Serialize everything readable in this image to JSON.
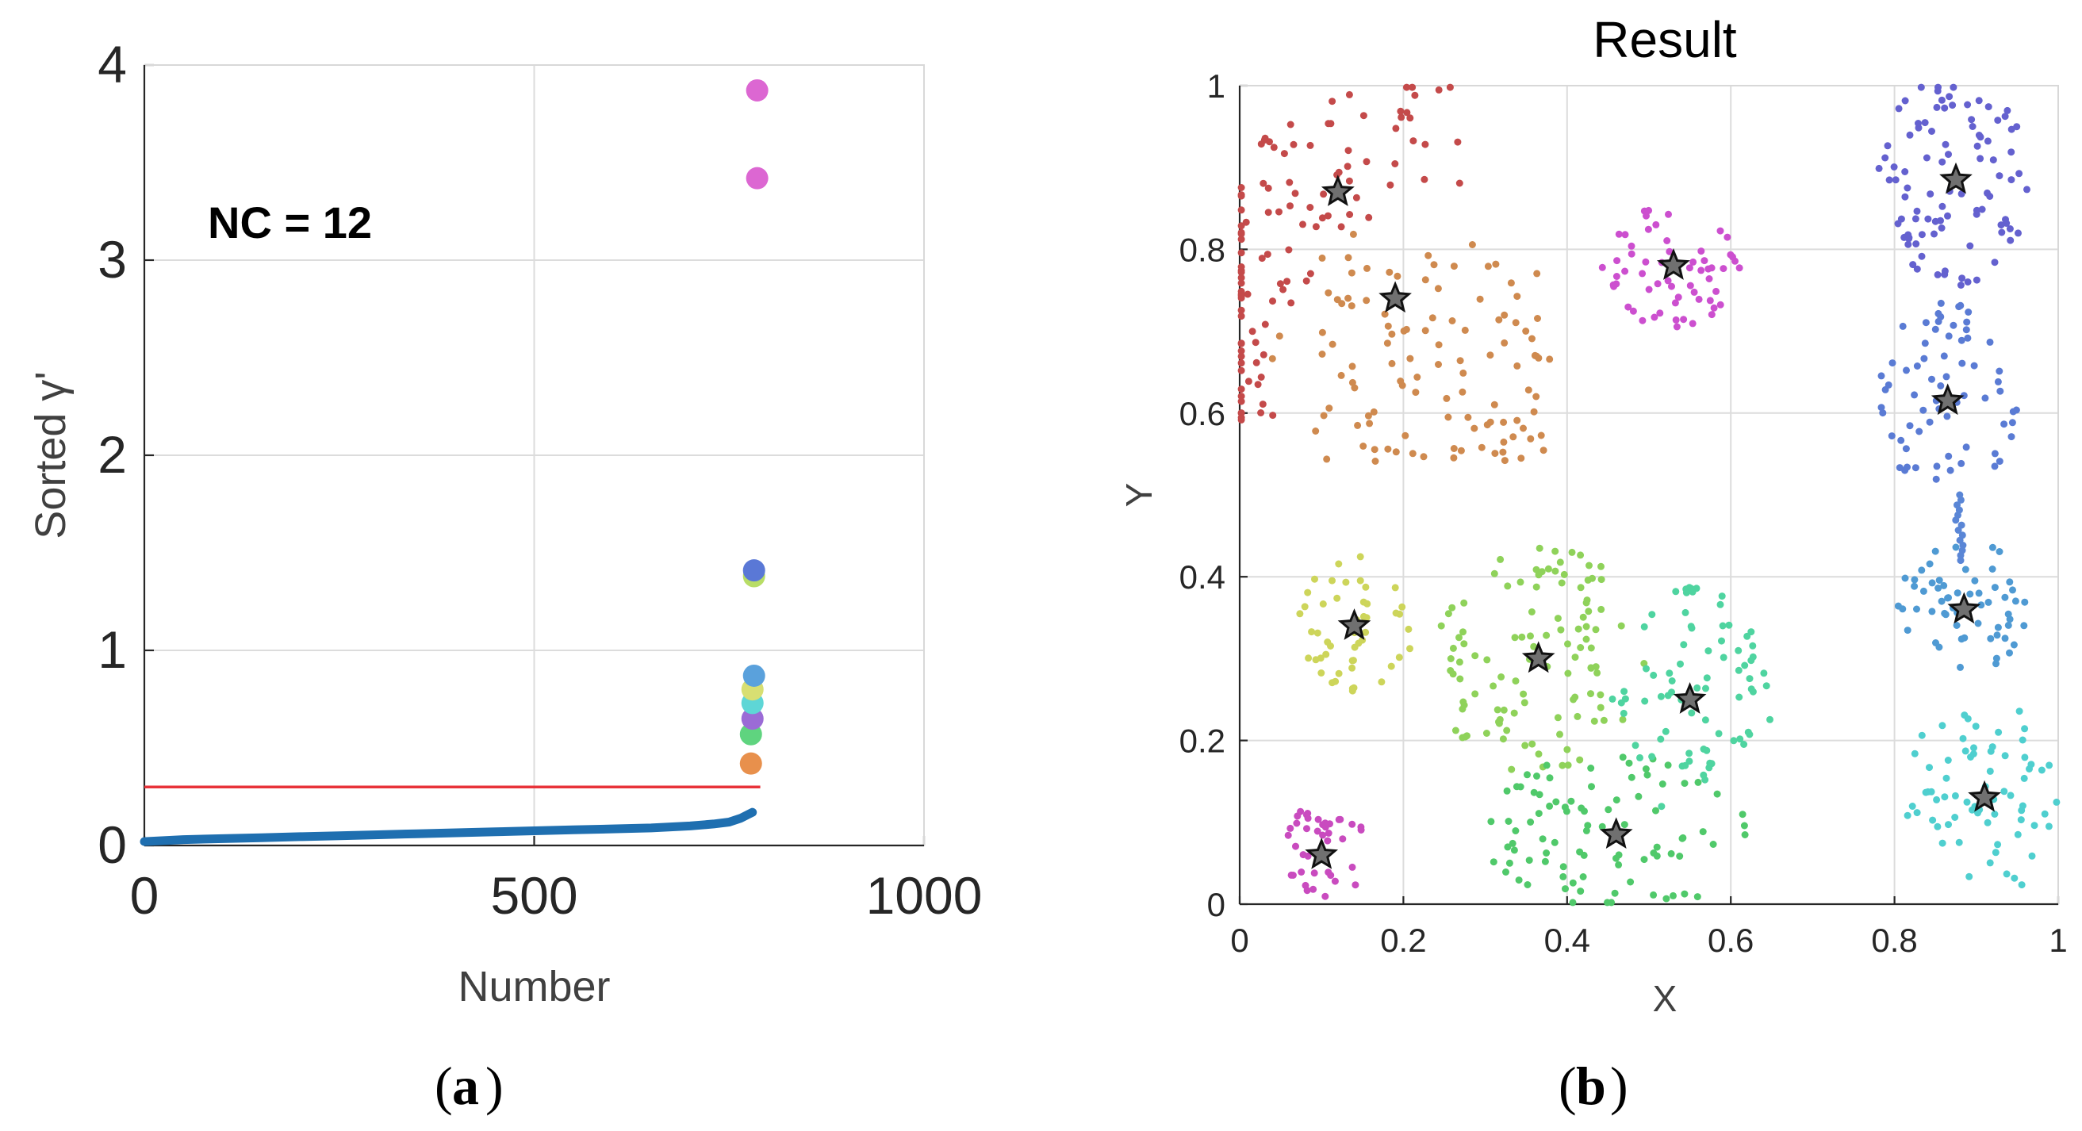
{
  "colors": {
    "threshold": "#e8333a",
    "curve": "#1f6fb0",
    "star_fill": "#707070",
    "star_stroke": "#111111"
  },
  "chart_data": [
    {
      "type": "scatter",
      "panel": "a",
      "caption_letter": "a",
      "xlabel": "Number",
      "ylabel": "Sorted γ'",
      "xlim": [
        0,
        1000
      ],
      "ylim": [
        0,
        4
      ],
      "xticks": [
        0,
        500,
        1000
      ],
      "yticks": [
        0,
        1,
        2,
        3,
        4
      ],
      "xtick_labels": [
        "0",
        "500",
        "1000"
      ],
      "ytick_labels": [
        "0",
        "1",
        "2",
        "3",
        "4"
      ],
      "grid": true,
      "annotation": "NC = 12",
      "threshold": {
        "y": 0.3,
        "x": [
          0,
          790
        ]
      },
      "sorted_curve": {
        "x": [
          0,
          50,
          100,
          150,
          200,
          250,
          300,
          350,
          400,
          450,
          500,
          550,
          600,
          650,
          700,
          730,
          750,
          765,
          775,
          780
        ],
        "y": [
          0.02,
          0.03,
          0.035,
          0.04,
          0.045,
          0.05,
          0.055,
          0.06,
          0.065,
          0.07,
          0.075,
          0.08,
          0.085,
          0.09,
          0.1,
          0.11,
          0.12,
          0.14,
          0.16,
          0.17
        ]
      },
      "highlighted": [
        {
          "x": 778,
          "y": 0.42,
          "color": "#e8904c"
        },
        {
          "x": 778,
          "y": 0.57,
          "color": "#5fd47f"
        },
        {
          "x": 780,
          "y": 0.65,
          "color": "#9b6bd6"
        },
        {
          "x": 780,
          "y": 0.73,
          "color": "#5ed6d6"
        },
        {
          "x": 780,
          "y": 0.8,
          "color": "#d8df72"
        },
        {
          "x": 782,
          "y": 0.87,
          "color": "#5aa1dc"
        },
        {
          "x": 782,
          "y": 1.38,
          "color": "#b8dd66"
        },
        {
          "x": 782,
          "y": 1.41,
          "color": "#5a78d6"
        },
        {
          "x": 786,
          "y": 3.42,
          "color": "#dc67d2"
        },
        {
          "x": 786,
          "y": 3.87,
          "color": "#dc67d2"
        }
      ]
    },
    {
      "type": "scatter",
      "panel": "b",
      "caption_letter": "b",
      "title": "Result",
      "xlabel": "X",
      "ylabel": "Y",
      "xlim": [
        0,
        1
      ],
      "ylim": [
        0,
        1
      ],
      "xticks": [
        0,
        0.2,
        0.4,
        0.6,
        0.8,
        1
      ],
      "yticks": [
        0,
        0.2,
        0.4,
        0.6,
        0.8,
        1
      ],
      "xtick_labels": [
        "0",
        "0.2",
        "0.4",
        "0.6",
        "0.8",
        "1"
      ],
      "ytick_labels": [
        "0",
        "0.2",
        "0.4",
        "0.6",
        "0.8",
        "1"
      ],
      "grid": true,
      "clusters": [
        {
          "id": 1,
          "color": "#c44a4a",
          "center": [
            0.12,
            0.87
          ],
          "shape": "arc",
          "arc": {
            "cx": 0.3,
            "cy": 0.62,
            "r_min": 0.26,
            "r_max": 0.42,
            "a0": 95,
            "a1": 185
          },
          "n": 110
        },
        {
          "id": 2,
          "color": "#cf8a4f",
          "center": [
            0.19,
            0.74
          ],
          "shape": "rect",
          "rect": [
            0.04,
            0.54,
            0.38,
            0.82
          ],
          "n": 110
        },
        {
          "id": 3,
          "color": "#cc4fcf",
          "center": [
            0.53,
            0.78
          ],
          "shape": "ellipse",
          "rx": 0.09,
          "ry": 0.075,
          "n": 60
        },
        {
          "id": 4,
          "color": "#6461cf",
          "center": [
            0.875,
            0.885
          ],
          "shape": "ellipse",
          "rx": 0.095,
          "ry": 0.13,
          "n": 95
        },
        {
          "id": 5,
          "color": "#5a7bd4",
          "center": [
            0.865,
            0.615
          ],
          "shape": "ellipse",
          "rx": 0.085,
          "ry": 0.12,
          "n": 70
        },
        {
          "id": 6,
          "color": "#4f9ad3",
          "center": [
            0.885,
            0.36
          ],
          "shape": "ellipse",
          "rx": 0.085,
          "ry": 0.085,
          "n": 60
        },
        {
          "id": 7,
          "color": "#4fcfcf",
          "center": [
            0.91,
            0.13
          ],
          "shape": "ellipse",
          "rx": 0.1,
          "ry": 0.12,
          "n": 70
        },
        {
          "id": 8,
          "color": "#cdd55a",
          "center": [
            0.14,
            0.34
          ],
          "shape": "ellipse",
          "rx": 0.075,
          "ry": 0.085,
          "n": 50
        },
        {
          "id": 9,
          "color": "#8fd25a",
          "center": [
            0.365,
            0.3
          ],
          "shape": "ellipse",
          "rx": 0.13,
          "ry": 0.14,
          "n": 110
        },
        {
          "id": 10,
          "color": "#50c96a",
          "center": [
            0.46,
            0.085
          ],
          "shape": "ellipse",
          "rx": 0.16,
          "ry": 0.1,
          "n": 90
        },
        {
          "id": 11,
          "color": "#4fd4a0",
          "center": [
            0.55,
            0.25
          ],
          "shape": "ellipse",
          "rx": 0.1,
          "ry": 0.14,
          "n": 80
        },
        {
          "id": 12,
          "color": "#c94bbf",
          "center": [
            0.1,
            0.06
          ],
          "shape": "ellipse",
          "rx": 0.06,
          "ry": 0.06,
          "n": 40
        }
      ],
      "bridge": {
        "color": "#5a86d6",
        "from": [
          0.875,
          0.5
        ],
        "to": [
          0.88,
          0.42
        ],
        "n": 14
      }
    }
  ]
}
